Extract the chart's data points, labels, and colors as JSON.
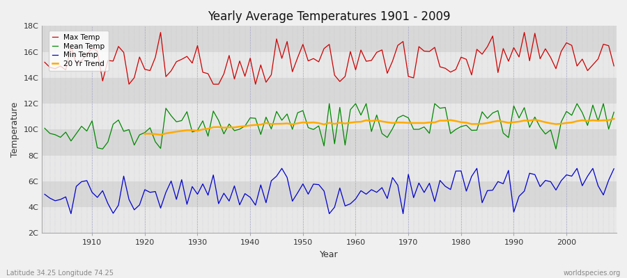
{
  "title": "Yearly Average Temperatures 1901 - 2009",
  "xlabel": "Year",
  "ylabel": "Temperature",
  "footnote_left": "Latitude 34.25 Longitude 74.25",
  "footnote_right": "worldspecies.org",
  "year_start": 1901,
  "year_end": 2009,
  "ylim": [
    2,
    18
  ],
  "yticks": [
    2,
    4,
    6,
    8,
    10,
    12,
    14,
    16,
    18
  ],
  "ytick_labels": [
    "2C",
    "4C",
    "6C",
    "8C",
    "10C",
    "12C",
    "14C",
    "16C",
    "18C"
  ],
  "bg_color": "#f0f0f0",
  "plot_bg_color": "#f0f0f0",
  "band_light": "#e8e8e8",
  "band_dark": "#d8d8d8",
  "grid_color": "#bbbbcc",
  "max_color": "#cc0000",
  "mean_color": "#008800",
  "min_color": "#0000cc",
  "trend_color": "#ffaa00",
  "legend_labels": [
    "Max Temp",
    "Mean Temp",
    "Min Temp",
    "20 Yr Trend"
  ]
}
